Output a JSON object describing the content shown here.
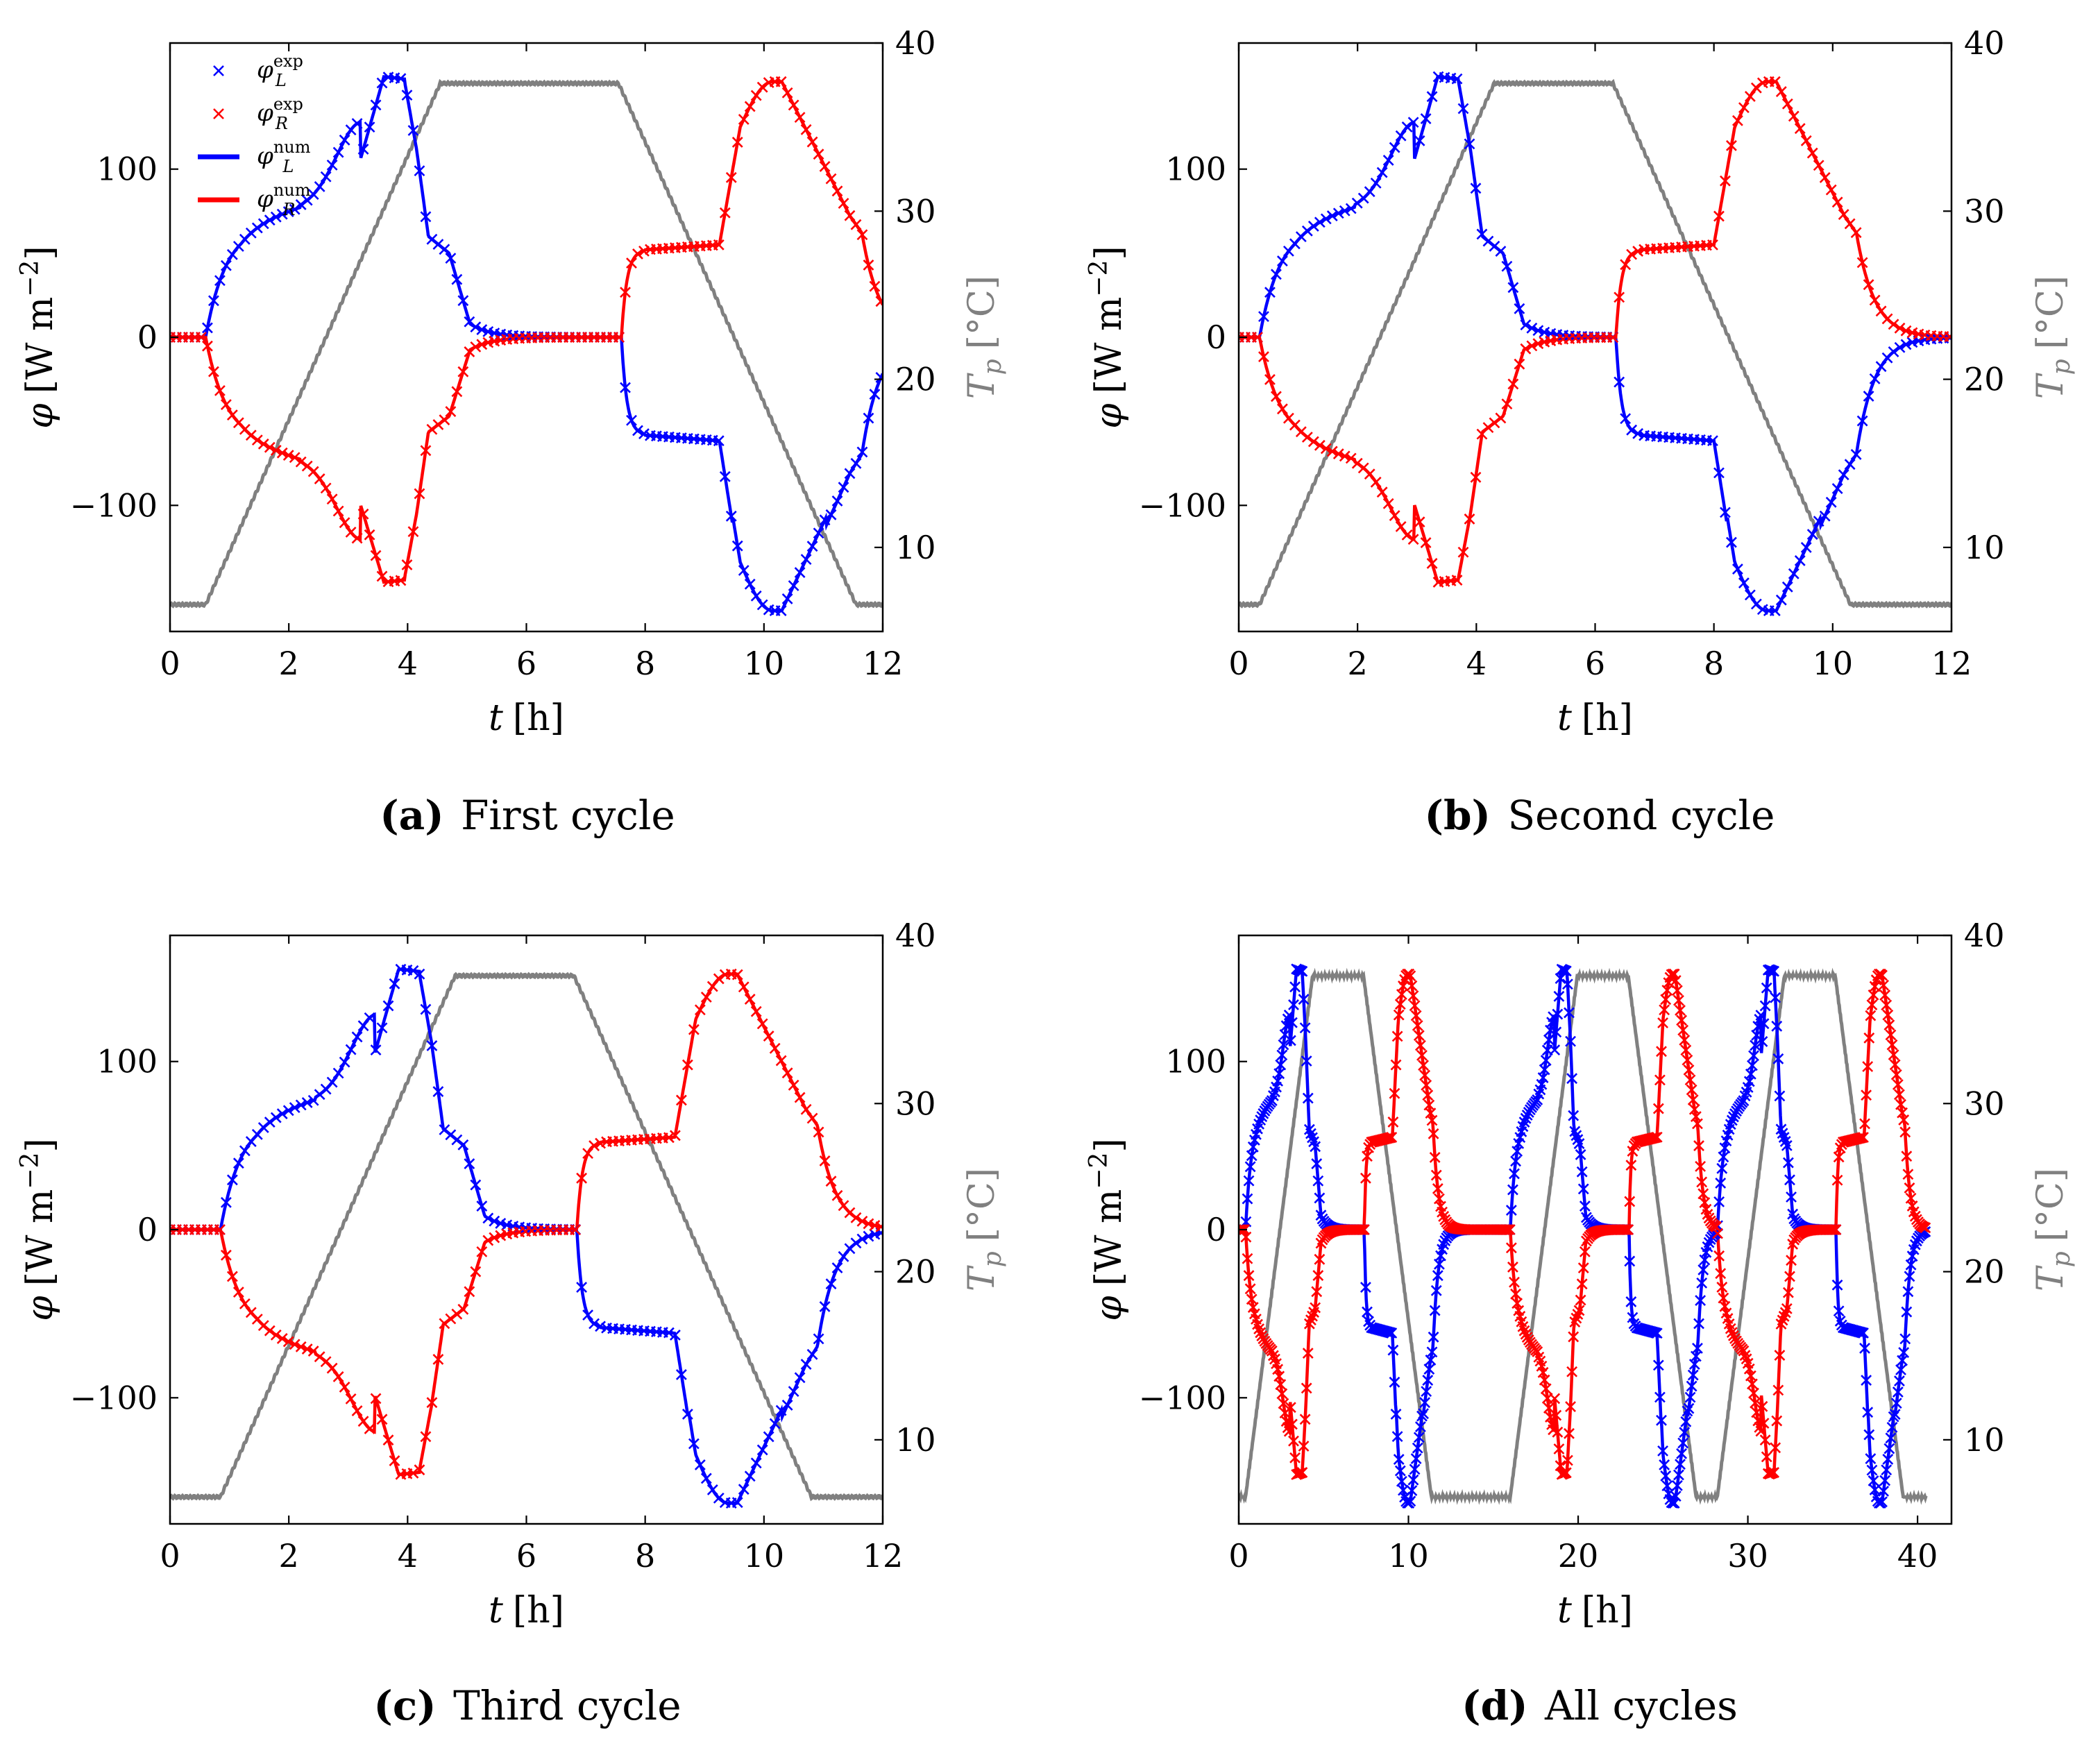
{
  "figure": {
    "subcaptions": [
      {
        "tag": "(a)",
        "text": "First cycle"
      },
      {
        "tag": "(b)",
        "text": "Second cycle"
      },
      {
        "tag": "(c)",
        "text": "Third cycle"
      },
      {
        "tag": "(d)",
        "text": "All cycles"
      }
    ]
  },
  "colors": {
    "left": "#0000ff",
    "right": "#ff0000",
    "temp": "#808080",
    "axis": "#000000"
  },
  "chart_data": [
    {
      "type": "line",
      "title": "First cycle",
      "xlabel_italic": "t",
      "xlabel_unit": "[h]",
      "ylabel_sym": "φ",
      "ylabel_unit": "[W m",
      "ylabel_exp": "−2",
      "ylabel_close": "]",
      "y2label_sym": "T",
      "y2label_sub": "p",
      "y2label_unit": "[°C]",
      "xlim": [
        0,
        12
      ],
      "ylim": [
        -175,
        175
      ],
      "y2lim": [
        5,
        40
      ],
      "xticks": [
        0,
        2,
        4,
        6,
        8,
        10,
        12
      ],
      "xtick_labels": [
        "0",
        "2",
        "4",
        "6",
        "8",
        "10",
        "12"
      ],
      "yticks": [
        -100,
        0,
        100
      ],
      "ytick_labels": [
        "−100",
        "0",
        "100"
      ],
      "y2ticks": [
        10,
        20,
        30,
        40
      ],
      "y2tick_labels": [
        "10",
        "20",
        "30",
        "40"
      ],
      "legend": {
        "position": "top-left",
        "entries": [
          {
            "sym": "φ",
            "sup": "exp",
            "sub": "L",
            "style": "cross-blue"
          },
          {
            "sym": "φ",
            "sup": "exp",
            "sub": "R",
            "style": "cross-red"
          },
          {
            "sym": "φ",
            "sup": "num",
            "sub": "L",
            "style": "line-blue"
          },
          {
            "sym": "φ",
            "sup": "num",
            "sub": "R",
            "style": "line-red"
          }
        ]
      },
      "cycle_offsets": [
        0.6
      ],
      "x_max_plot": 12,
      "series_description": [
        "φ_L exp (blue crosses)",
        "φ_R exp (red crosses)",
        "φ_L num (blue line)",
        "φ_R num (red line)",
        "T_p (gray line, right axis)"
      ],
      "temperature": {
        "low": 6.6,
        "high": 37.6,
        "ramp_up_h": 3.95,
        "hold_h": 3.0,
        "ramp_down_h": 4.0
      }
    },
    {
      "type": "line",
      "title": "Second cycle",
      "xlabel_italic": "t",
      "xlabel_unit": "[h]",
      "ylabel_sym": "φ",
      "ylabel_unit": "[W m",
      "ylabel_exp": "−2",
      "ylabel_close": "]",
      "y2label_sym": "T",
      "y2label_sub": "p",
      "y2label_unit": "[°C]",
      "xlim": [
        0,
        12
      ],
      "ylim": [
        -175,
        175
      ],
      "y2lim": [
        5,
        40
      ],
      "xticks": [
        0,
        2,
        4,
        6,
        8,
        10,
        12
      ],
      "xtick_labels": [
        "0",
        "2",
        "4",
        "6",
        "8",
        "10",
        "12"
      ],
      "yticks": [
        -100,
        0,
        100
      ],
      "ytick_labels": [
        "−100",
        "0",
        "100"
      ],
      "y2ticks": [
        10,
        20,
        30,
        40
      ],
      "y2tick_labels": [
        "10",
        "20",
        "30",
        "40"
      ],
      "cycle_offsets": [
        0.35
      ],
      "x_max_plot": 12,
      "temperature": {
        "low": 6.6,
        "high": 37.6,
        "ramp_up_h": 3.95,
        "hold_h": 2.0,
        "ramp_down_h": 4.0
      }
    },
    {
      "type": "line",
      "title": "Third cycle",
      "xlabel_italic": "t",
      "xlabel_unit": "[h]",
      "ylabel_sym": "φ",
      "ylabel_unit": "[W m",
      "ylabel_exp": "−2",
      "ylabel_close": "]",
      "y2label_sym": "T",
      "y2label_sub": "p",
      "y2label_unit": "[°C]",
      "xlim": [
        0,
        12
      ],
      "ylim": [
        -175,
        175
      ],
      "y2lim": [
        5,
        40
      ],
      "xticks": [
        0,
        2,
        4,
        6,
        8,
        10,
        12
      ],
      "xtick_labels": [
        "0",
        "2",
        "4",
        "6",
        "8",
        "10",
        "12"
      ],
      "yticks": [
        -100,
        0,
        100
      ],
      "ytick_labels": [
        "−100",
        "0",
        "100"
      ],
      "y2ticks": [
        10,
        20,
        30,
        40
      ],
      "y2tick_labels": [
        "10",
        "20",
        "30",
        "40"
      ],
      "cycle_offsets": [
        0.85
      ],
      "x_max_plot": 12,
      "temperature": {
        "low": 6.6,
        "high": 37.6,
        "ramp_up_h": 3.95,
        "hold_h": 2.0,
        "ramp_down_h": 4.0
      }
    },
    {
      "type": "line",
      "title": "All cycles",
      "xlabel_italic": "t",
      "xlabel_unit": "[h]",
      "ylabel_sym": "φ",
      "ylabel_unit": "[W m",
      "ylabel_exp": "−2",
      "ylabel_close": "]",
      "y2label_sym": "T",
      "y2label_sub": "p",
      "y2label_unit": "[°C]",
      "xlim": [
        0,
        42
      ],
      "ylim": [
        -175,
        175
      ],
      "y2lim": [
        5,
        40
      ],
      "xticks": [
        0,
        10,
        20,
        30,
        40
      ],
      "xtick_labels": [
        "0",
        "10",
        "20",
        "30",
        "40"
      ],
      "yticks": [
        -100,
        0,
        100
      ],
      "ytick_labels": [
        "−100",
        "0",
        "100"
      ],
      "y2ticks": [
        10,
        20,
        30,
        40
      ],
      "y2tick_labels": [
        "10",
        "20",
        "30",
        "40"
      ],
      "cycle_offsets": [
        0.4,
        16.0,
        28.2
      ],
      "x_max_plot": 40.5,
      "temperature": {
        "low": 6.6,
        "high": 37.6,
        "ramp_up_h": 3.95,
        "hold_h": 3.0,
        "ramp_down_h": 4.0
      }
    }
  ]
}
